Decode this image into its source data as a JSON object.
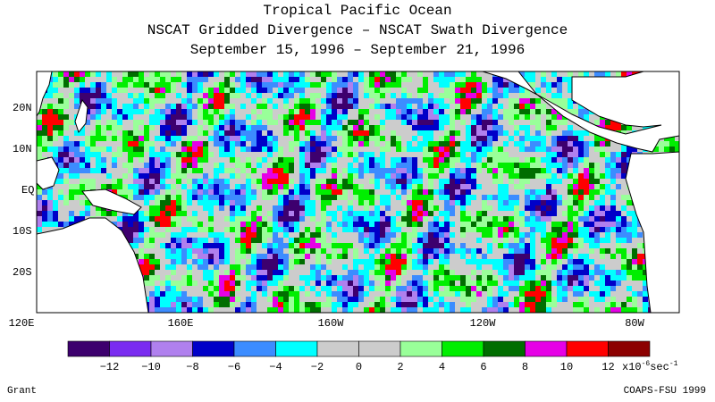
{
  "title": {
    "line1": "Tropical Pacific Ocean",
    "line2": "NSCAT Gridded Divergence – NSCAT Swath Divergence",
    "line3": "September 15, 1996 – September 21, 1996"
  },
  "lat_labels": [
    "20N",
    "10N",
    "EQ",
    "10S",
    "20S"
  ],
  "lon_labels": [
    "120E",
    "160E",
    "160W",
    "120W",
    "80W"
  ],
  "colorbar": {
    "colors": [
      "#3d006e",
      "#7a2cf0",
      "#b080ee",
      "#0000c8",
      "#3c8cff",
      "#00ffff",
      "#cccccc",
      "#cccccc",
      "#99ff99",
      "#00ee00",
      "#006e00",
      "#e600e6",
      "#ff0000",
      "#8c0000"
    ],
    "tick_labels": [
      "-12",
      "-10",
      "-8",
      "-6",
      "-4",
      "-2",
      "0",
      "2",
      "4",
      "6",
      "8",
      "10",
      "12"
    ],
    "unit_label": "x10",
    "unit_exp": "-6",
    "unit_tail": "sec",
    "unit_tail_exp": "-1"
  },
  "footer": {
    "left": "Grant",
    "right": "COAPS-FSU 1999"
  }
}
